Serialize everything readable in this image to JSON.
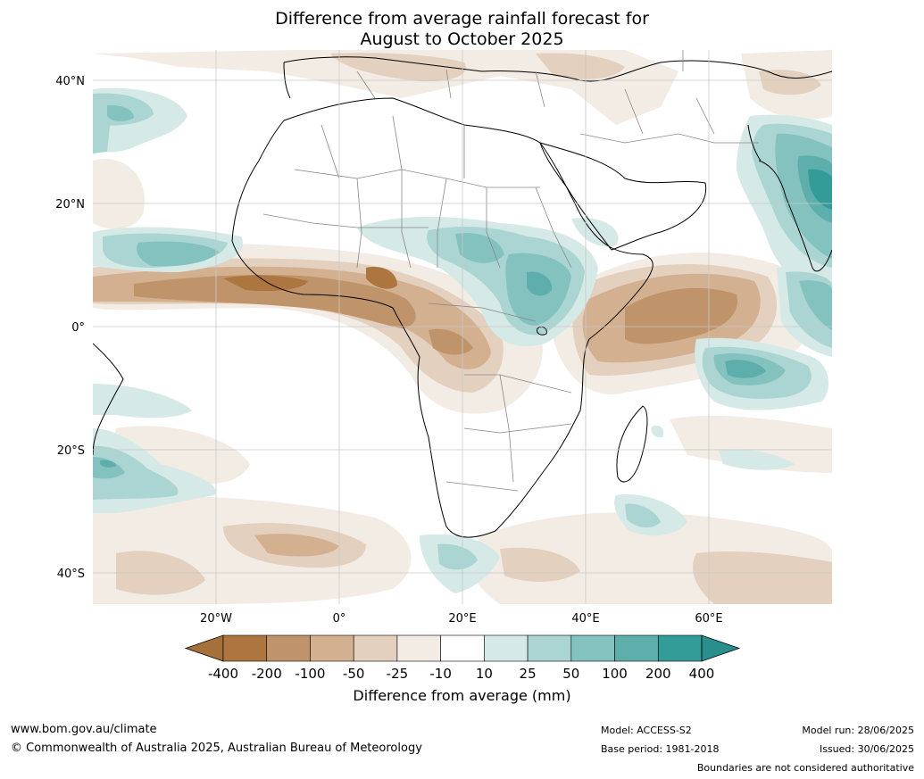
{
  "title_line1": "Difference from average rainfall forecast for",
  "title_line2": "August to October 2025",
  "lat_labels": [
    "40°N",
    "20°N",
    "0°",
    "20°S",
    "40°S"
  ],
  "lon_labels": [
    "20°W",
    "0°",
    "20°E",
    "40°E",
    "60°E"
  ],
  "colorbar": {
    "labels": [
      "-400",
      "-200",
      "-100",
      "-50",
      "-25",
      "-10",
      "10",
      "25",
      "50",
      "100",
      "200",
      "400"
    ],
    "colors": [
      "#a5703a",
      "#ad7540",
      "#c0946a",
      "#d3b08f",
      "#e3d0bf",
      "#f2ece4",
      "#ffffff",
      "#d5e9e7",
      "#abd5d2",
      "#84c2bf",
      "#5eaeab",
      "#339b98",
      "#2a8f8c"
    ],
    "title": "Difference from average (mm)"
  },
  "footer": {
    "url": "www.bom.gov.au/climate",
    "copyright": "© Commonwealth of Australia 2025, Australian Bureau of Meteorology",
    "model": "Model: ACCESS-S2",
    "base_period": "Base period: 1981-2018",
    "model_run": "Model run: 28/06/2025",
    "issued": "Issued: 30/06/2025",
    "disclaimer": "Boundaries are not considered authoritative"
  }
}
